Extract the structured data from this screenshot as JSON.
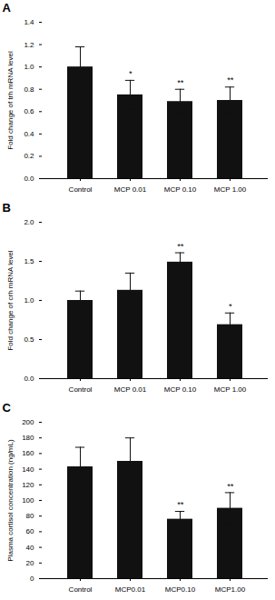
{
  "chart_data": [
    {
      "type": "bar",
      "title": "A",
      "ylabel": "Fold change of trh mRNA level",
      "categories": [
        "Control",
        "MCP 0.01",
        "MCP 0.10",
        "MCP 1.00"
      ],
      "values": [
        1.0,
        0.75,
        0.69,
        0.7
      ],
      "errors": [
        0.18,
        0.13,
        0.11,
        0.12
      ],
      "annotations": [
        {
          "category": "MCP 0.01",
          "text": "*"
        },
        {
          "category": "MCP 0.10",
          "text": "**"
        },
        {
          "category": "MCP 1.00",
          "text": "**"
        }
      ],
      "color": "#111111",
      "ylim": [
        0,
        1.4
      ],
      "yticks": [
        {
          "value": 0,
          "label": "0.0"
        },
        0.2,
        0.4,
        0.6,
        0.8,
        {
          "value": 1,
          "label": "1.0"
        },
        1.2,
        1.4
      ],
      "grid": false
    },
    {
      "type": "bar",
      "title": "B",
      "ylabel": "Fold change of crh mRNA level",
      "categories": [
        "Control",
        "MCP 0.01",
        "MCP 0.10",
        "MCP 1.00"
      ],
      "values": [
        1.0,
        1.13,
        1.49,
        0.69
      ],
      "errors": [
        0.12,
        0.22,
        0.12,
        0.15
      ],
      "annotations": [
        {
          "category": "MCP 0.10",
          "text": "**"
        },
        {
          "category": "MCP 1.00",
          "text": "*"
        }
      ],
      "color": "#111111",
      "ylim": [
        0,
        2.0
      ],
      "yticks": [
        {
          "value": 0,
          "label": "0.0"
        },
        0.5,
        {
          "value": 1,
          "label": "1.0"
        },
        1.5,
        {
          "value": 2,
          "label": "2.0"
        }
      ],
      "grid": false
    },
    {
      "type": "bar",
      "title": "C",
      "ylabel": "Plasma cortisol concentration (ng/mL)",
      "categories": [
        "Control",
        "MCP0.01",
        "MCP0.10",
        "MCP1.00"
      ],
      "values": [
        143,
        150,
        76,
        90
      ],
      "errors": [
        25,
        30,
        10,
        20
      ],
      "annotations": [
        {
          "category": "MCP0.10",
          "text": "**"
        },
        {
          "category": "MCP1.00",
          "text": "**"
        }
      ],
      "color": "#111111",
      "ylim": [
        0,
        200
      ],
      "yticks": [
        0,
        20,
        40,
        60,
        80,
        100,
        120,
        140,
        160,
        180,
        200
      ],
      "grid": false
    }
  ]
}
